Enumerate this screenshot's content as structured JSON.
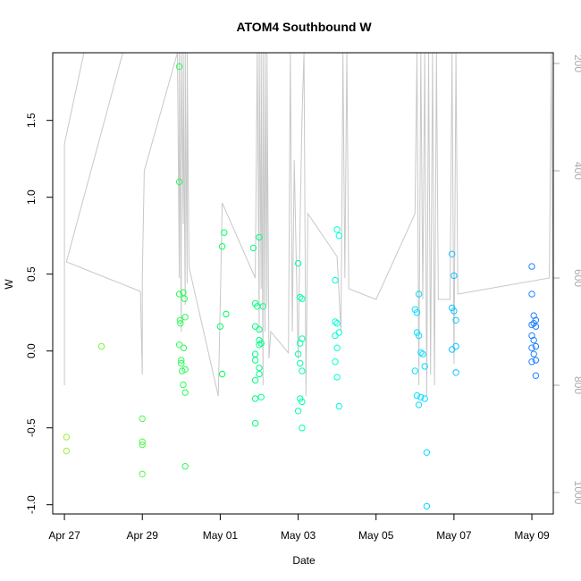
{
  "chart_data": {
    "type": "scatter",
    "title": "ATOM4 Southbound W",
    "xlabel": "Date",
    "ylabel": "W",
    "x_start_date": "2000-04-27",
    "xlim_days": [
      -0.3,
      12.55
    ],
    "ylim": [
      -1.06,
      1.94
    ],
    "y2lim": [
      1040,
      180
    ],
    "x_ticks": [
      {
        "day": 0,
        "label": "Apr 27"
      },
      {
        "day": 2,
        "label": "Apr 29"
      },
      {
        "day": 4,
        "label": "May 01"
      },
      {
        "day": 6,
        "label": "May 03"
      },
      {
        "day": 8,
        "label": "May 05"
      },
      {
        "day": 10,
        "label": "May 07"
      },
      {
        "day": 12,
        "label": "May 09"
      }
    ],
    "y_ticks": [
      {
        "value": -1.0,
        "label": "-1.0"
      },
      {
        "value": -0.5,
        "label": "-0.5"
      },
      {
        "value": 0.0,
        "label": "0.0"
      },
      {
        "value": 0.5,
        "label": "0.5"
      },
      {
        "value": 1.0,
        "label": "1.0"
      },
      {
        "value": 1.5,
        "label": "1.5"
      }
    ],
    "y2_ticks": [
      {
        "value": 200,
        "label": "200"
      },
      {
        "value": 400,
        "label": "400"
      },
      {
        "value": 600,
        "label": "600"
      },
      {
        "value": 800,
        "label": "800"
      },
      {
        "value": 1000,
        "label": "1000"
      }
    ],
    "colors": {
      "line": "#c8c8c8",
      "right_axis": "#aaaaaa",
      "point_gradient": [
        "#a0f23c",
        "#00ff60",
        "#00ffff",
        "#2080ff"
      ]
    },
    "line_points": [
      [
        0.0,
        800
      ],
      [
        0.0,
        350
      ],
      [
        0.5,
        180
      ],
      [
        1.5,
        180
      ],
      [
        0.05,
        570
      ],
      [
        1.95,
        625
      ],
      [
        2.0,
        780
      ],
      [
        2.0,
        600
      ],
      [
        2.05,
        400
      ],
      [
        2.9,
        180
      ],
      [
        2.95,
        600
      ],
      [
        2.95,
        180
      ],
      [
        3.0,
        700
      ],
      [
        3.0,
        180
      ],
      [
        3.05,
        500
      ],
      [
        3.05,
        180
      ],
      [
        3.1,
        650
      ],
      [
        3.1,
        180
      ],
      [
        3.15,
        610
      ],
      [
        3.15,
        180
      ],
      [
        3.2,
        580
      ],
      [
        3.95,
        820
      ],
      [
        4.0,
        650
      ],
      [
        4.05,
        460
      ],
      [
        4.9,
        600
      ],
      [
        4.95,
        180
      ],
      [
        5.0,
        700
      ],
      [
        5.0,
        180
      ],
      [
        5.05,
        620
      ],
      [
        5.05,
        180
      ],
      [
        5.1,
        800
      ],
      [
        5.1,
        180
      ],
      [
        5.15,
        700
      ],
      [
        5.15,
        180
      ],
      [
        5.2,
        650
      ],
      [
        5.2,
        180
      ],
      [
        5.25,
        750
      ],
      [
        5.3,
        700
      ],
      [
        5.75,
        740
      ],
      [
        5.8,
        180
      ],
      [
        5.85,
        700
      ],
      [
        5.9,
        380
      ],
      [
        6.0,
        750
      ],
      [
        6.05,
        500
      ],
      [
        6.1,
        300
      ],
      [
        6.15,
        180
      ],
      [
        6.2,
        820
      ],
      [
        6.25,
        480
      ],
      [
        7.0,
        560
      ],
      [
        7.1,
        700
      ],
      [
        7.15,
        180
      ],
      [
        7.2,
        600
      ],
      [
        7.25,
        180
      ],
      [
        7.3,
        620
      ],
      [
        8.0,
        640
      ],
      [
        9.0,
        480
      ],
      [
        9.05,
        180
      ],
      [
        9.1,
        800
      ],
      [
        9.15,
        180
      ],
      [
        9.2,
        640
      ],
      [
        9.25,
        180
      ],
      [
        9.3,
        820
      ],
      [
        9.35,
        180
      ],
      [
        9.4,
        780
      ],
      [
        9.45,
        180
      ],
      [
        9.5,
        800
      ],
      [
        9.55,
        180
      ],
      [
        9.6,
        640
      ],
      [
        9.9,
        640
      ],
      [
        9.95,
        180
      ],
      [
        10.0,
        760
      ],
      [
        10.05,
        180
      ],
      [
        10.1,
        630
      ],
      [
        12.45,
        600
      ],
      [
        12.5,
        180
      ],
      [
        12.55,
        740
      ]
    ],
    "points": [
      [
        0.05,
        -0.56
      ],
      [
        0.05,
        -0.65
      ],
      [
        0.95,
        0.03
      ],
      [
        2.0,
        -0.44
      ],
      [
        2.0,
        -0.59
      ],
      [
        2.0,
        -0.61
      ],
      [
        2.0,
        -0.8
      ],
      [
        2.95,
        1.85
      ],
      [
        2.95,
        1.1
      ],
      [
        2.95,
        0.37
      ],
      [
        2.97,
        0.2
      ],
      [
        2.98,
        0.18
      ],
      [
        2.95,
        0.04
      ],
      [
        3.0,
        -0.06
      ],
      [
        3.0,
        -0.08
      ],
      [
        3.02,
        -0.13
      ],
      [
        3.05,
        -0.22
      ],
      [
        3.05,
        0.38
      ],
      [
        3.08,
        0.34
      ],
      [
        3.1,
        0.22
      ],
      [
        3.06,
        0.02
      ],
      [
        3.1,
        -0.12
      ],
      [
        3.1,
        -0.27
      ],
      [
        3.1,
        -0.75
      ],
      [
        4.0,
        0.16
      ],
      [
        4.05,
        0.68
      ],
      [
        4.1,
        0.77
      ],
      [
        4.15,
        0.24
      ],
      [
        4.05,
        -0.15
      ],
      [
        4.85,
        0.67
      ],
      [
        4.9,
        0.16
      ],
      [
        4.9,
        0.31
      ],
      [
        4.9,
        -0.02
      ],
      [
        4.9,
        -0.06
      ],
      [
        4.9,
        -0.19
      ],
      [
        4.9,
        -0.31
      ],
      [
        4.9,
        -0.47
      ],
      [
        4.95,
        0.29
      ],
      [
        5.0,
        0.74
      ],
      [
        5.0,
        0.07
      ],
      [
        5.0,
        0.04
      ],
      [
        5.0,
        0.14
      ],
      [
        5.0,
        -0.11
      ],
      [
        5.0,
        -0.15
      ],
      [
        5.05,
        -0.3
      ],
      [
        5.05,
        0.05
      ],
      [
        5.1,
        0.29
      ],
      [
        6.0,
        0.57
      ],
      [
        6.05,
        0.35
      ],
      [
        6.1,
        0.34
      ],
      [
        6.0,
        -0.02
      ],
      [
        6.1,
        0.08
      ],
      [
        6.05,
        0.05
      ],
      [
        6.05,
        -0.08
      ],
      [
        6.1,
        -0.13
      ],
      [
        6.05,
        -0.31
      ],
      [
        6.1,
        -0.33
      ],
      [
        6.0,
        -0.39
      ],
      [
        6.1,
        -0.5
      ],
      [
        7.0,
        0.79
      ],
      [
        7.05,
        0.75
      ],
      [
        6.95,
        0.46
      ],
      [
        6.95,
        0.19
      ],
      [
        7.0,
        0.18
      ],
      [
        7.05,
        0.12
      ],
      [
        6.95,
        0.1
      ],
      [
        7.0,
        0.02
      ],
      [
        6.95,
        -0.07
      ],
      [
        7.0,
        -0.17
      ],
      [
        7.05,
        -0.36
      ],
      [
        9.0,
        0.27
      ],
      [
        9.05,
        0.25
      ],
      [
        9.1,
        0.37
      ],
      [
        9.05,
        0.12
      ],
      [
        9.1,
        0.1
      ],
      [
        9.15,
        -0.01
      ],
      [
        9.2,
        -0.02
      ],
      [
        9.25,
        -0.1
      ],
      [
        9.0,
        -0.13
      ],
      [
        9.05,
        -0.29
      ],
      [
        9.15,
        -0.3
      ],
      [
        9.25,
        -0.31
      ],
      [
        9.1,
        -0.35
      ],
      [
        9.3,
        -0.66
      ],
      [
        9.3,
        -1.01
      ],
      [
        9.95,
        0.63
      ],
      [
        10.0,
        0.49
      ],
      [
        9.95,
        0.28
      ],
      [
        10.0,
        0.26
      ],
      [
        10.05,
        0.2
      ],
      [
        10.05,
        0.03
      ],
      [
        9.95,
        0.01
      ],
      [
        10.05,
        -0.14
      ],
      [
        12.0,
        0.55
      ],
      [
        12.0,
        0.37
      ],
      [
        12.05,
        0.23
      ],
      [
        12.1,
        0.2
      ],
      [
        12.0,
        0.17
      ],
      [
        12.05,
        0.18
      ],
      [
        12.1,
        0.16
      ],
      [
        12.0,
        0.1
      ],
      [
        12.05,
        0.07
      ],
      [
        12.1,
        0.03
      ],
      [
        12.0,
        0.02
      ],
      [
        12.05,
        -0.02
      ],
      [
        12.1,
        -0.06
      ],
      [
        12.0,
        -0.07
      ],
      [
        12.1,
        -0.16
      ]
    ]
  }
}
